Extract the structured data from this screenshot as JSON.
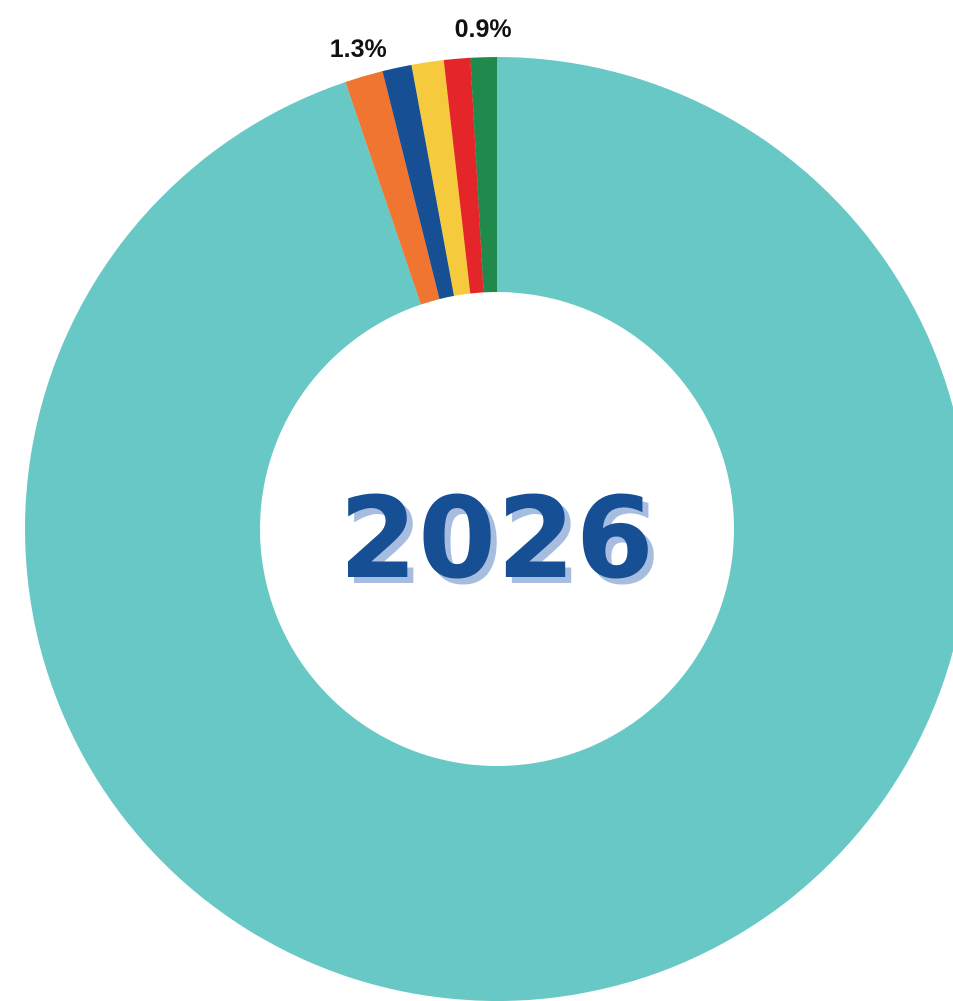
{
  "chart_data": {
    "type": "pie",
    "variant": "donut",
    "center_label": "2026",
    "slices": [
      {
        "value": 94.8,
        "color": "#68c8c6",
        "label": ""
      },
      {
        "value": 1.3,
        "color": "#ef7530",
        "label": "1.3%"
      },
      {
        "value": 1.0,
        "color": "#174f94",
        "label": ""
      },
      {
        "value": 1.1,
        "color": "#f6ca3d",
        "label": ""
      },
      {
        "value": 0.9,
        "color": "#e4262b",
        "label": ""
      },
      {
        "value": 0.9,
        "color": "#1f8a4c",
        "label": "0.9%"
      }
    ],
    "colors": {
      "center_text": "#174f94",
      "center_text_shadow": "#a7bde0",
      "label_text": "#111111"
    }
  }
}
